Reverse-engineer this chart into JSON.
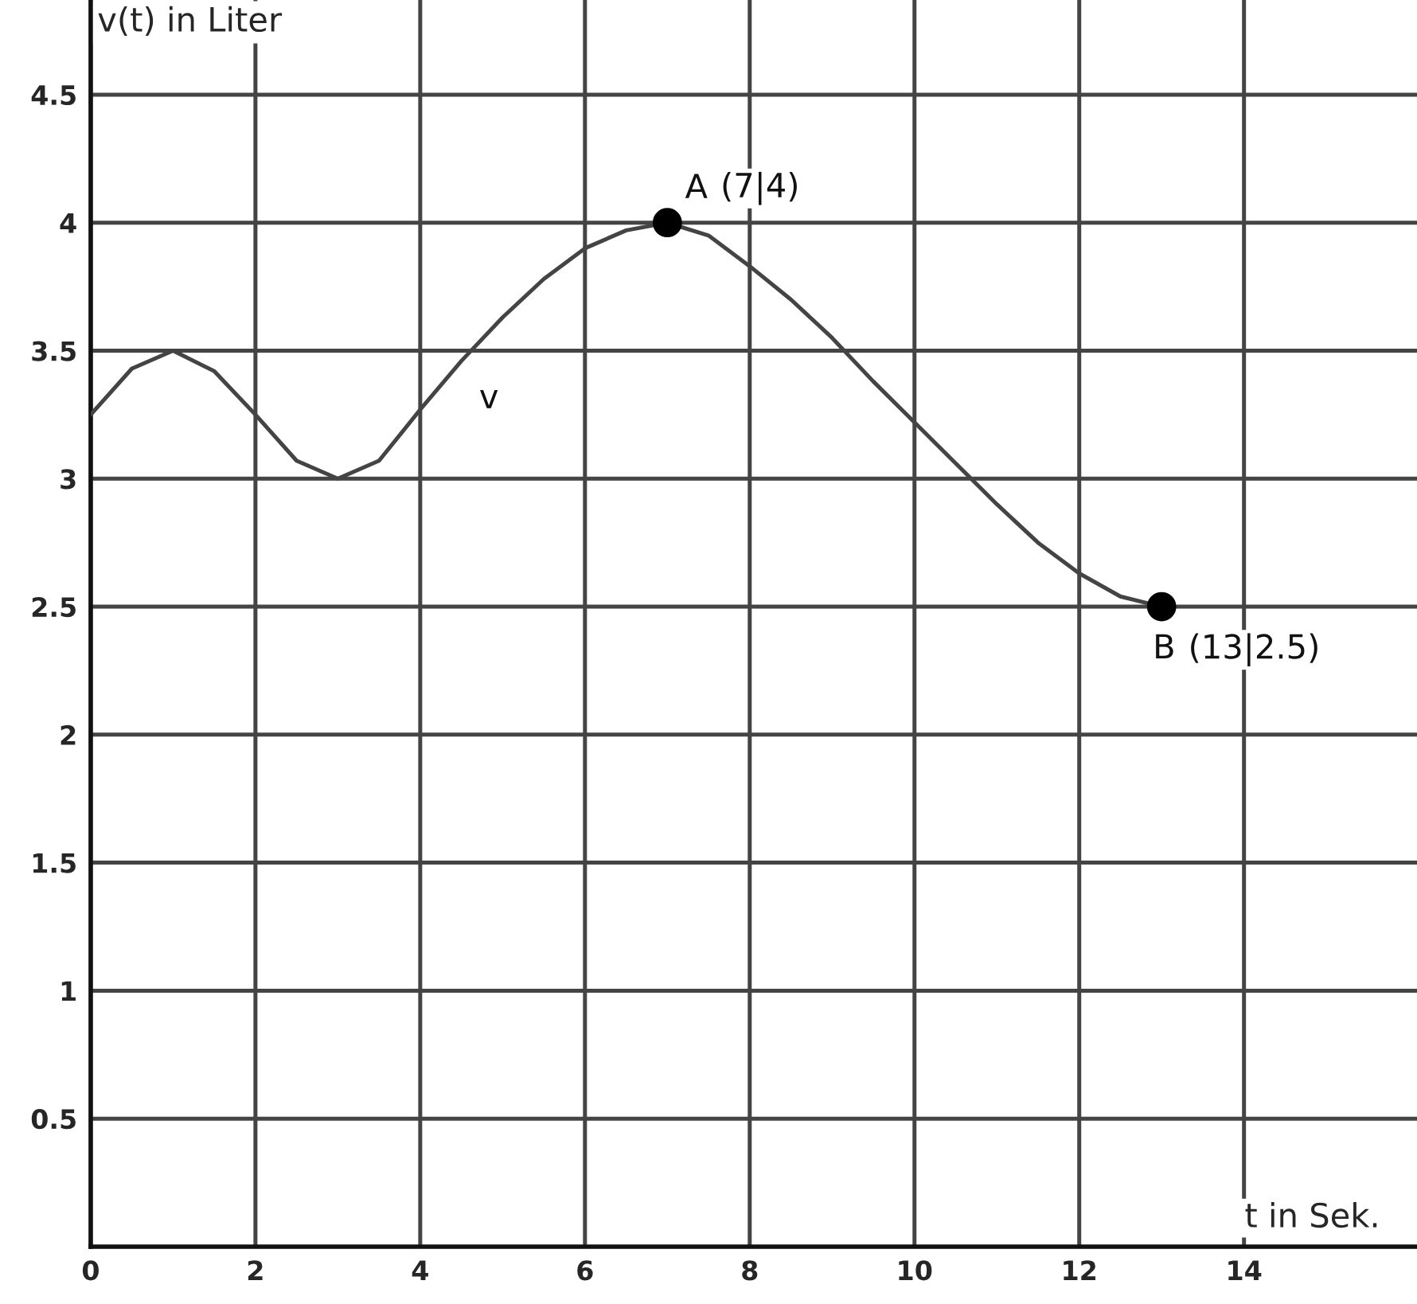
{
  "chart_data": {
    "type": "line",
    "xlabel": "t in Sek.",
    "ylabel": "v(t) in Liter",
    "x": [
      0,
      0.5,
      1,
      1.5,
      2,
      2.5,
      3,
      3.5,
      4,
      4.5,
      5,
      5.5,
      6,
      6.5,
      7,
      7.5,
      8,
      8.5,
      9,
      9.5,
      10,
      10.5,
      11,
      11.5,
      12,
      12.5,
      13
    ],
    "series": [
      {
        "name": "v",
        "color": "#444444",
        "marker": "none",
        "values": [
          3.25,
          3.43,
          3.5,
          3.42,
          3.25,
          3.07,
          3.0,
          3.07,
          3.27,
          3.46,
          3.63,
          3.78,
          3.9,
          3.97,
          4.0,
          3.95,
          3.83,
          3.7,
          3.55,
          3.38,
          3.22,
          3.06,
          2.9,
          2.75,
          2.63,
          2.54,
          2.5
        ]
      },
      {
        "type": "scatter",
        "color": "#000000",
        "marker": "circle",
        "x": [
          7,
          13
        ],
        "values": [
          4,
          2.5
        ],
        "value_labels": [
          "(7|4)",
          "(13|2.5)"
        ]
      }
    ],
    "annotations": [
      {
        "text": "A",
        "x": 7,
        "y": 4
      },
      {
        "text": "B",
        "x": 13,
        "y": 2.5
      }
    ],
    "xlim": [
      0,
      16.1
    ],
    "ylim": [
      0,
      4.87
    ],
    "xticks": [
      0,
      2,
      4,
      6,
      8,
      10,
      12,
      14
    ],
    "yticks": [
      0.5,
      1,
      1.5,
      2,
      2.5,
      3,
      3.5,
      4,
      4.5
    ],
    "grid": true,
    "legend": false
  }
}
